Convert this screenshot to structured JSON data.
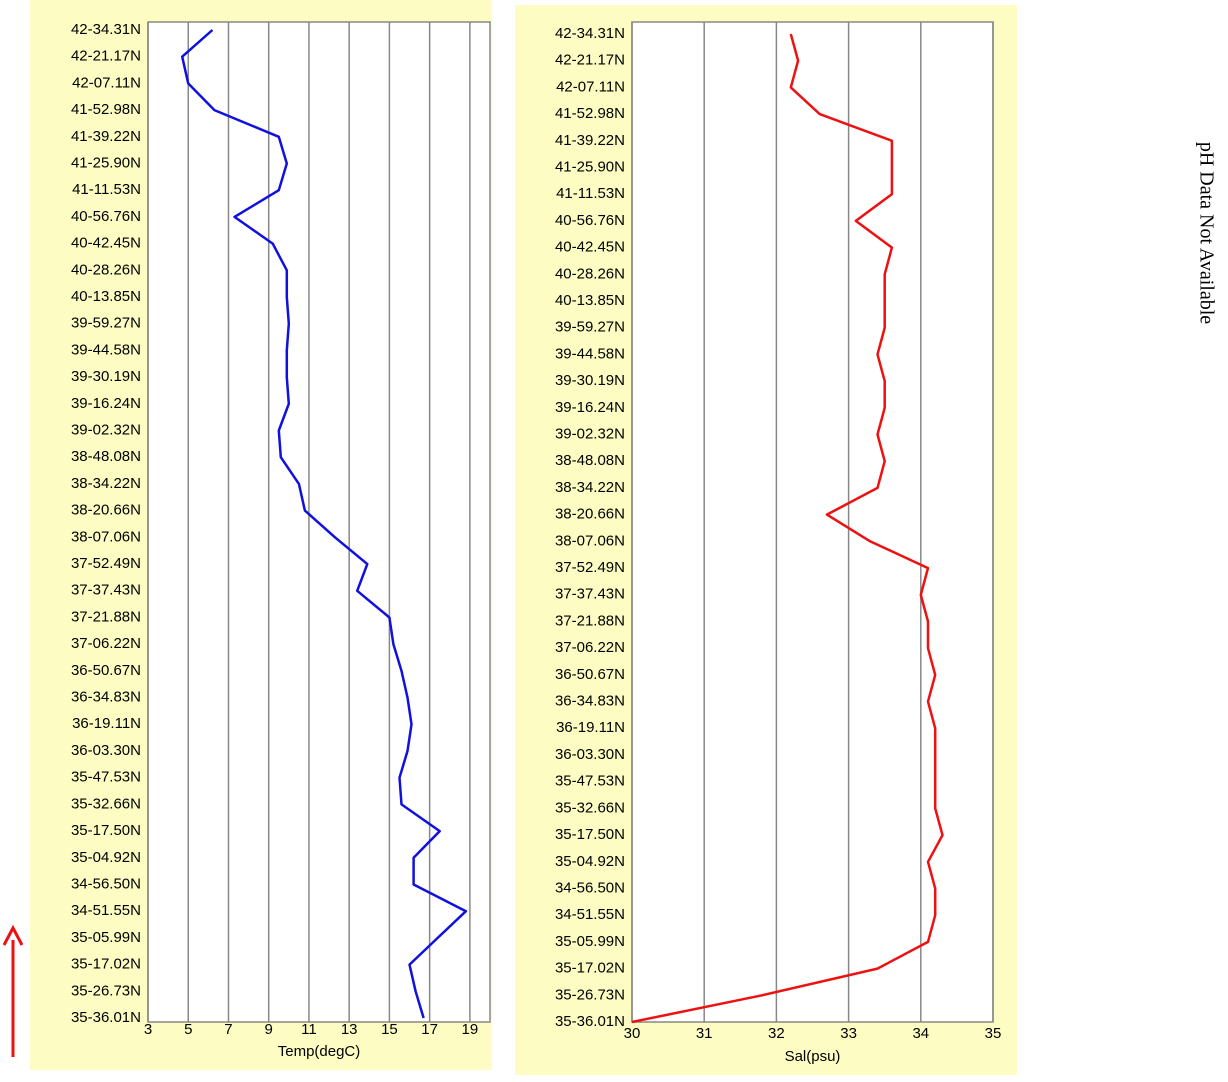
{
  "chart_data": [
    {
      "type": "line",
      "orientation": "horizontal",
      "x_label": "Temp(degC)",
      "color": "#1010e0",
      "grid": true,
      "categories": [
        "42-34.31N",
        "42-21.17N",
        "42-07.11N",
        "41-52.98N",
        "41-39.22N",
        "41-25.90N",
        "41-11.53N",
        "40-56.76N",
        "40-42.45N",
        "40-28.26N",
        "40-13.85N",
        "39-59.27N",
        "39-44.58N",
        "39-30.19N",
        "39-16.24N",
        "39-02.32N",
        "38-48.08N",
        "38-34.22N",
        "38-20.66N",
        "38-07.06N",
        "37-52.49N",
        "37-37.43N",
        "37-21.88N",
        "37-06.22N",
        "36-50.67N",
        "36-34.83N",
        "36-19.11N",
        "36-03.30N",
        "35-47.53N",
        "35-32.66N",
        "35-17.50N",
        "35-04.92N",
        "34-56.50N",
        "34-51.55N",
        "35-05.99N",
        "35-17.02N",
        "35-26.73N",
        "35-36.01N"
      ],
      "values": [
        6.2,
        4.7,
        5.0,
        6.3,
        9.5,
        9.9,
        9.5,
        7.3,
        9.2,
        9.9,
        9.9,
        10.0,
        9.9,
        9.9,
        10.0,
        9.5,
        9.6,
        10.5,
        10.8,
        12.3,
        13.9,
        13.4,
        15.0,
        15.2,
        15.6,
        15.9,
        16.1,
        15.9,
        15.5,
        15.6,
        17.5,
        16.2,
        16.2,
        18.8,
        17.4,
        16.0,
        16.3,
        16.7
      ],
      "xlim": [
        3,
        20
      ],
      "xticks": [
        3,
        5,
        7,
        9,
        11,
        13,
        15,
        17,
        19
      ]
    },
    {
      "type": "line",
      "orientation": "horizontal",
      "x_label": "Sal(psu)",
      "color": "#ee1111",
      "grid": true,
      "categories": [
        "42-34.31N",
        "42-21.17N",
        "42-07.11N",
        "41-52.98N",
        "41-39.22N",
        "41-25.90N",
        "41-11.53N",
        "40-56.76N",
        "40-42.45N",
        "40-28.26N",
        "40-13.85N",
        "39-59.27N",
        "39-44.58N",
        "39-30.19N",
        "39-16.24N",
        "39-02.32N",
        "38-48.08N",
        "38-34.22N",
        "38-20.66N",
        "38-07.06N",
        "37-52.49N",
        "37-37.43N",
        "37-21.88N",
        "37-06.22N",
        "36-50.67N",
        "36-34.83N",
        "36-19.11N",
        "36-03.30N",
        "35-47.53N",
        "35-32.66N",
        "35-17.50N",
        "35-04.92N",
        "34-56.50N",
        "34-51.55N",
        "35-05.99N",
        "35-17.02N",
        "35-26.73N",
        "35-36.01N"
      ],
      "values": [
        32.2,
        32.3,
        32.2,
        32.6,
        33.6,
        33.6,
        33.6,
        33.1,
        33.6,
        33.5,
        33.5,
        33.5,
        33.4,
        33.5,
        33.5,
        33.4,
        33.5,
        33.4,
        32.7,
        33.3,
        34.1,
        34.0,
        34.1,
        34.1,
        34.2,
        34.1,
        34.2,
        34.2,
        34.2,
        34.2,
        34.3,
        34.1,
        34.2,
        34.2,
        34.1,
        33.4,
        31.8,
        30.0
      ],
      "xlim": [
        30,
        35
      ],
      "xticks": [
        30,
        31,
        32,
        33,
        34,
        35
      ]
    }
  ],
  "side_note": "pH Data Not Available"
}
